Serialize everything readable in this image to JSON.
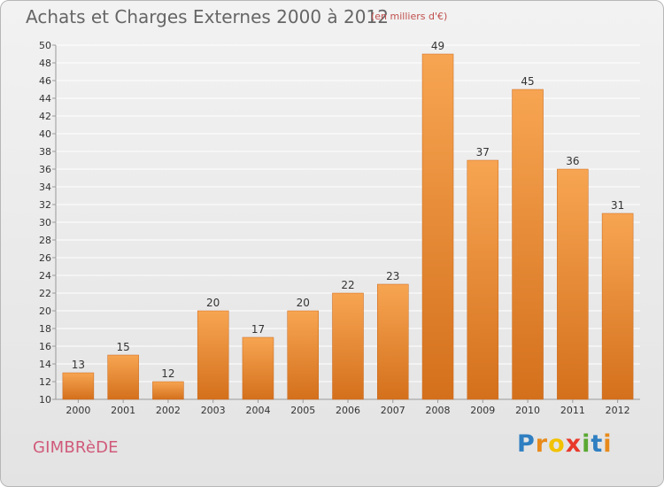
{
  "header": {
    "title": "Achats et Charges Externes 2000 à 2012",
    "subtitle": "(en milliers d'€)"
  },
  "footer": {
    "commune": "GIMBRèDE",
    "logo": [
      "P",
      "r",
      "o",
      "x",
      "i",
      "t",
      "i"
    ]
  },
  "colors": {
    "bar_top": "#f7a552",
    "bar_bottom": "#d4701c",
    "axis": "#999999",
    "grid": "#ffffff",
    "title": "#666666",
    "commune": "#d05a7a"
  },
  "chart_data": {
    "type": "bar",
    "title": "Achats et Charges Externes 2000 à 2012",
    "subtitle": "(en milliers d'€)",
    "categories": [
      "2000",
      "2001",
      "2002",
      "2003",
      "2004",
      "2005",
      "2006",
      "2007",
      "2008",
      "2009",
      "2010",
      "2011",
      "2012"
    ],
    "values": [
      13,
      15,
      12,
      20,
      17,
      20,
      22,
      23,
      49,
      37,
      45,
      36,
      31
    ],
    "ylim": [
      10,
      50
    ],
    "ytick_step": 2,
    "grid": true,
    "xlabel": "",
    "ylabel": ""
  }
}
